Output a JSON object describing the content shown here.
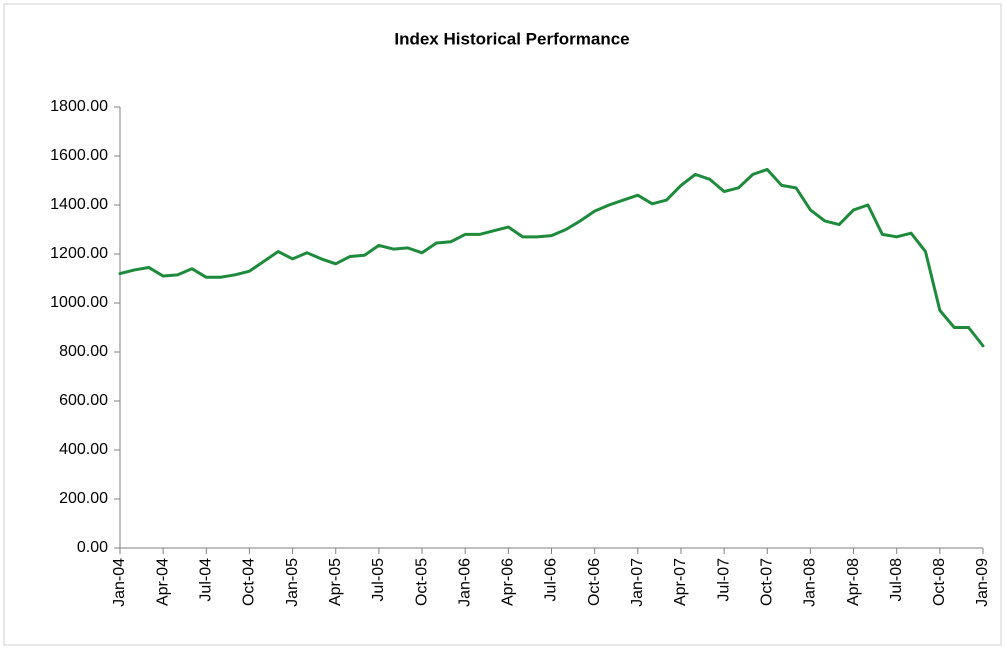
{
  "chart_data": {
    "type": "line",
    "title": "Index Historical Performance",
    "categories": [
      "Jan-04",
      null,
      null,
      "Apr-04",
      null,
      null,
      "Jul-04",
      null,
      null,
      "Oct-04",
      null,
      null,
      "Jan-05",
      null,
      null,
      "Apr-05",
      null,
      null,
      "Jul-05",
      null,
      null,
      "Oct-05",
      null,
      null,
      "Jan-06",
      null,
      null,
      "Apr-06",
      null,
      null,
      "Jul-06",
      null,
      null,
      "Oct-06",
      null,
      null,
      "Jan-07",
      null,
      null,
      "Apr-07",
      null,
      null,
      "Jul-07",
      null,
      null,
      "Oct-07",
      null,
      null,
      "Jan-08",
      null,
      null,
      "Apr-08",
      null,
      null,
      "Jul-08",
      null,
      null,
      "Oct-08",
      null,
      null,
      "Jan-09"
    ],
    "series": [
      {
        "color": "#1e8a3c",
        "values": [
          1120,
          1135,
          1145,
          1110,
          1115,
          1140,
          1105,
          1105,
          1115,
          1130,
          1170,
          1210,
          1180,
          1205,
          1180,
          1160,
          1190,
          1195,
          1235,
          1220,
          1225,
          1205,
          1245,
          1250,
          1280,
          1280,
          1295,
          1310,
          1270,
          1270,
          1275,
          1300,
          1335,
          1375,
          1400,
          1420,
          1440,
          1405,
          1420,
          1480,
          1525,
          1505,
          1455,
          1470,
          1525,
          1545,
          1480,
          1470,
          1380,
          1335,
          1320,
          1380,
          1400,
          1280,
          1270,
          1285,
          1210,
          970,
          900,
          900,
          825
        ]
      }
    ],
    "ylim": [
      0,
      1800
    ],
    "yticks": [
      {
        "value": 0,
        "label": "0.00"
      },
      {
        "value": 200,
        "label": "200.00"
      },
      {
        "value": 400,
        "label": "400.00"
      },
      {
        "value": 600,
        "label": "600.00"
      },
      {
        "value": 800,
        "label": "800.00"
      },
      {
        "value": 1000,
        "label": "1000.00"
      },
      {
        "value": 1200,
        "label": "1200.00"
      },
      {
        "value": 1400,
        "label": "1400.00"
      },
      {
        "value": 1600,
        "label": "1600.00"
      },
      {
        "value": 1800,
        "label": "1800.00"
      }
    ]
  }
}
